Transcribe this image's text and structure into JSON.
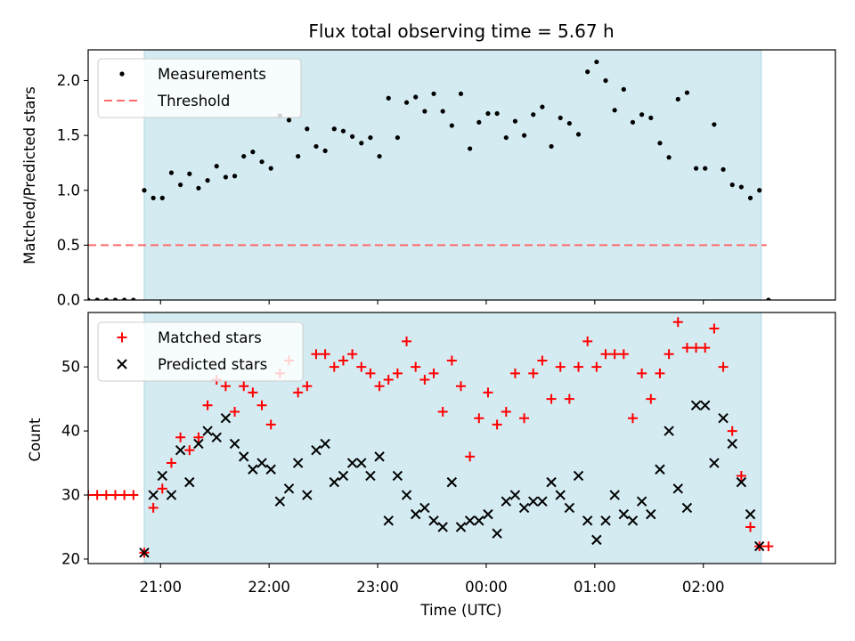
{
  "figure": {
    "title": "Flux total observing time = 5.67 h",
    "xlabel": "Time (UTC)",
    "x_ticks": [
      "21:00",
      "22:00",
      "23:00",
      "00:00",
      "01:00",
      "02:00"
    ]
  },
  "colors": {
    "shading": "#add8e6",
    "measurements": "#000000",
    "threshold": "#ff6b6b",
    "matched": "#ff0000",
    "predicted": "#000000"
  },
  "chart_data": [
    {
      "type": "scatter",
      "ylabel": "Matched/Predicted stars",
      "xlim": [
        "20:20",
        "03:13"
      ],
      "ylim": [
        0,
        2.28
      ],
      "y_ticks": [
        "0.0",
        "0.5",
        "1.0",
        "1.5",
        "2.0"
      ],
      "y_tick_values": [
        0,
        0.5,
        1.0,
        1.5,
        2.0
      ],
      "shaded_interval": [
        "20:51",
        "02:32"
      ],
      "legend_position": "upper left",
      "series": [
        {
          "name": "Measurements",
          "marker": "dot",
          "x": [
            "20:20",
            "20:25",
            "20:30",
            "20:35",
            "20:40",
            "20:45",
            "20:51",
            "20:56",
            "21:01",
            "21:06",
            "21:11",
            "21:16",
            "21:21",
            "21:26",
            "21:31",
            "21:36",
            "21:41",
            "21:46",
            "21:51",
            "21:56",
            "22:01",
            "22:06",
            "22:11",
            "22:16",
            "22:21",
            "22:26",
            "22:31",
            "22:36",
            "22:41",
            "22:46",
            "22:51",
            "22:56",
            "23:01",
            "23:06",
            "23:11",
            "23:16",
            "23:21",
            "23:26",
            "23:31",
            "23:36",
            "23:41",
            "23:46",
            "23:51",
            "23:56",
            "00:01",
            "00:06",
            "00:11",
            "00:16",
            "00:21",
            "00:26",
            "00:31",
            "00:36",
            "00:41",
            "00:46",
            "00:51",
            "00:56",
            "01:01",
            "01:06",
            "01:11",
            "01:16",
            "01:21",
            "01:26",
            "01:31",
            "01:36",
            "01:41",
            "01:46",
            "01:51",
            "01:56",
            "02:01",
            "02:06",
            "02:11",
            "02:16",
            "02:21",
            "02:26",
            "02:31",
            "02:36"
          ],
          "y": [
            0,
            0,
            0,
            0,
            0,
            0,
            1.0,
            0.93,
            0.93,
            1.16,
            1.05,
            1.15,
            1.02,
            1.09,
            1.22,
            1.12,
            1.13,
            1.31,
            1.35,
            1.26,
            1.2,
            1.68,
            1.64,
            1.31,
            1.56,
            1.4,
            1.36,
            1.56,
            1.54,
            1.49,
            1.43,
            1.48,
            1.31,
            1.84,
            1.48,
            1.8,
            1.85,
            1.72,
            1.88,
            1.72,
            1.59,
            1.88,
            1.38,
            1.62,
            1.7,
            1.7,
            1.48,
            1.63,
            1.5,
            1.69,
            1.76,
            1.4,
            1.66,
            1.61,
            1.51,
            2.08,
            2.17,
            2.0,
            1.73,
            1.92,
            1.62,
            1.69,
            1.66,
            1.43,
            1.3,
            1.83,
            1.89,
            1.2,
            1.2,
            1.6,
            1.19,
            1.05,
            1.03,
            0.93,
            1.0,
            0
          ]
        },
        {
          "name": "Threshold",
          "style": "dashed",
          "x": [
            "20:20",
            "02:35"
          ],
          "y": [
            0.5,
            0.5
          ]
        }
      ]
    },
    {
      "type": "scatter",
      "ylabel": "Count",
      "xlim": [
        "20:20",
        "03:13"
      ],
      "ylim": [
        19.3,
        58.5
      ],
      "y_ticks": [
        "20",
        "30",
        "40",
        "50"
      ],
      "y_tick_values": [
        20,
        30,
        40,
        50
      ],
      "shaded_interval": [
        "20:51",
        "02:32"
      ],
      "legend_position": "upper left",
      "series": [
        {
          "name": "Matched stars",
          "marker": "plus",
          "x": [
            "20:20",
            "20:25",
            "20:30",
            "20:35",
            "20:40",
            "20:45",
            "20:51",
            "20:56",
            "21:01",
            "21:06",
            "21:11",
            "21:16",
            "21:21",
            "21:26",
            "21:31",
            "21:36",
            "21:41",
            "21:46",
            "21:51",
            "21:56",
            "22:01",
            "22:06",
            "22:11",
            "22:16",
            "22:21",
            "22:26",
            "22:31",
            "22:36",
            "22:41",
            "22:46",
            "22:51",
            "22:56",
            "23:01",
            "23:06",
            "23:11",
            "23:16",
            "23:21",
            "23:26",
            "23:31",
            "23:36",
            "23:41",
            "23:46",
            "23:51",
            "23:56",
            "00:01",
            "00:06",
            "00:11",
            "00:16",
            "00:21",
            "00:26",
            "00:31",
            "00:36",
            "00:41",
            "00:46",
            "00:51",
            "00:56",
            "01:01",
            "01:06",
            "01:11",
            "01:16",
            "01:21",
            "01:26",
            "01:31",
            "01:36",
            "01:41",
            "01:46",
            "01:51",
            "01:56",
            "02:01",
            "02:06",
            "02:11",
            "02:16",
            "02:21",
            "02:26",
            "02:31",
            "02:36"
          ],
          "y": [
            30,
            30,
            30,
            30,
            30,
            30,
            21,
            28,
            31,
            35,
            39,
            37,
            39,
            44,
            48,
            47,
            43,
            47,
            46,
            44,
            41,
            49,
            51,
            46,
            47,
            52,
            52,
            50,
            51,
            52,
            50,
            49,
            47,
            48,
            49,
            54,
            50,
            48,
            49,
            43,
            51,
            47,
            36,
            42,
            46,
            41,
            43,
            49,
            42,
            49,
            51,
            45,
            50,
            45,
            50,
            54,
            50,
            52,
            52,
            52,
            42,
            49,
            45,
            49,
            52,
            57,
            53,
            53,
            53,
            56,
            50,
            40,
            33,
            25,
            22,
            22
          ]
        },
        {
          "name": "Predicted stars",
          "marker": "x",
          "x": [
            "20:51",
            "20:56",
            "21:01",
            "21:06",
            "21:11",
            "21:16",
            "21:21",
            "21:26",
            "21:31",
            "21:36",
            "21:41",
            "21:46",
            "21:51",
            "21:56",
            "22:01",
            "22:06",
            "22:11",
            "22:16",
            "22:21",
            "22:26",
            "22:31",
            "22:36",
            "22:41",
            "22:46",
            "22:51",
            "22:56",
            "23:01",
            "23:06",
            "23:11",
            "23:16",
            "23:21",
            "23:26",
            "23:31",
            "23:36",
            "23:41",
            "23:46",
            "23:51",
            "23:56",
            "00:01",
            "00:06",
            "00:11",
            "00:16",
            "00:21",
            "00:26",
            "00:31",
            "00:36",
            "00:41",
            "00:46",
            "00:51",
            "00:56",
            "01:01",
            "01:06",
            "01:11",
            "01:16",
            "01:21",
            "01:26",
            "01:31",
            "01:36",
            "01:41",
            "01:46",
            "01:51",
            "01:56",
            "02:01",
            "02:06",
            "02:11",
            "02:16",
            "02:21",
            "02:26",
            "02:31"
          ],
          "y": [
            21,
            30,
            33,
            30,
            37,
            32,
            38,
            40,
            39,
            42,
            38,
            36,
            34,
            35,
            34,
            29,
            31,
            35,
            30,
            37,
            38,
            32,
            33,
            35,
            35,
            33,
            36,
            26,
            33,
            30,
            27,
            28,
            26,
            25,
            32,
            25,
            26,
            26,
            27,
            24,
            29,
            30,
            28,
            29,
            29,
            32,
            30,
            28,
            33,
            26,
            23,
            26,
            30,
            27,
            26,
            29,
            27,
            34,
            40,
            31,
            28,
            44,
            44,
            35,
            42,
            38,
            32,
            27,
            22
          ]
        }
      ]
    }
  ]
}
